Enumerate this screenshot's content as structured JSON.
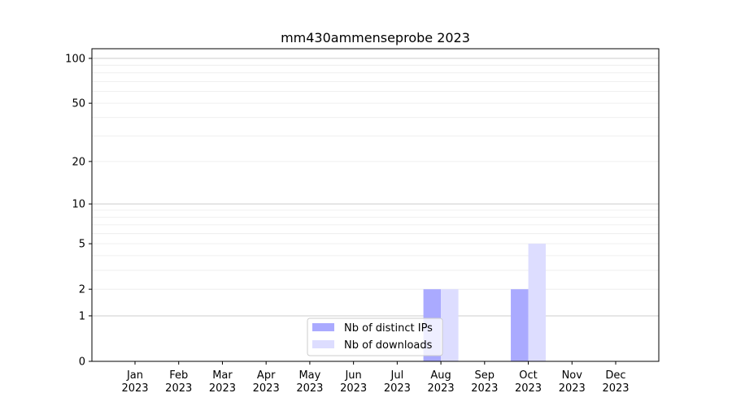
{
  "chart_data": {
    "type": "bar",
    "title": "mm430ammenseprobe 2023",
    "xlabel": "",
    "ylabel": "",
    "yscale": "log(1+y)",
    "ylim": [
      0,
      116
    ],
    "yticks": [
      0,
      1,
      2,
      5,
      10,
      20,
      50,
      100
    ],
    "grid": true,
    "legend_position": "lower-center",
    "categories": [
      "Jan\n2023",
      "Feb\n2023",
      "Mar\n2023",
      "Apr\n2023",
      "May\n2023",
      "Jun\n2023",
      "Jul\n2023",
      "Aug\n2023",
      "Sep\n2023",
      "Oct\n2023",
      "Nov\n2023",
      "Dec\n2023"
    ],
    "series": [
      {
        "name": "Nb of distinct IPs",
        "color": "#aaaaff",
        "values": [
          0,
          0,
          0,
          0,
          0,
          0,
          0,
          2,
          0,
          2,
          0,
          0
        ]
      },
      {
        "name": "Nb of downloads",
        "color": "#ddddff",
        "values": [
          0,
          0,
          0,
          0,
          0,
          0,
          0,
          2,
          0,
          5,
          0,
          0
        ]
      }
    ]
  }
}
